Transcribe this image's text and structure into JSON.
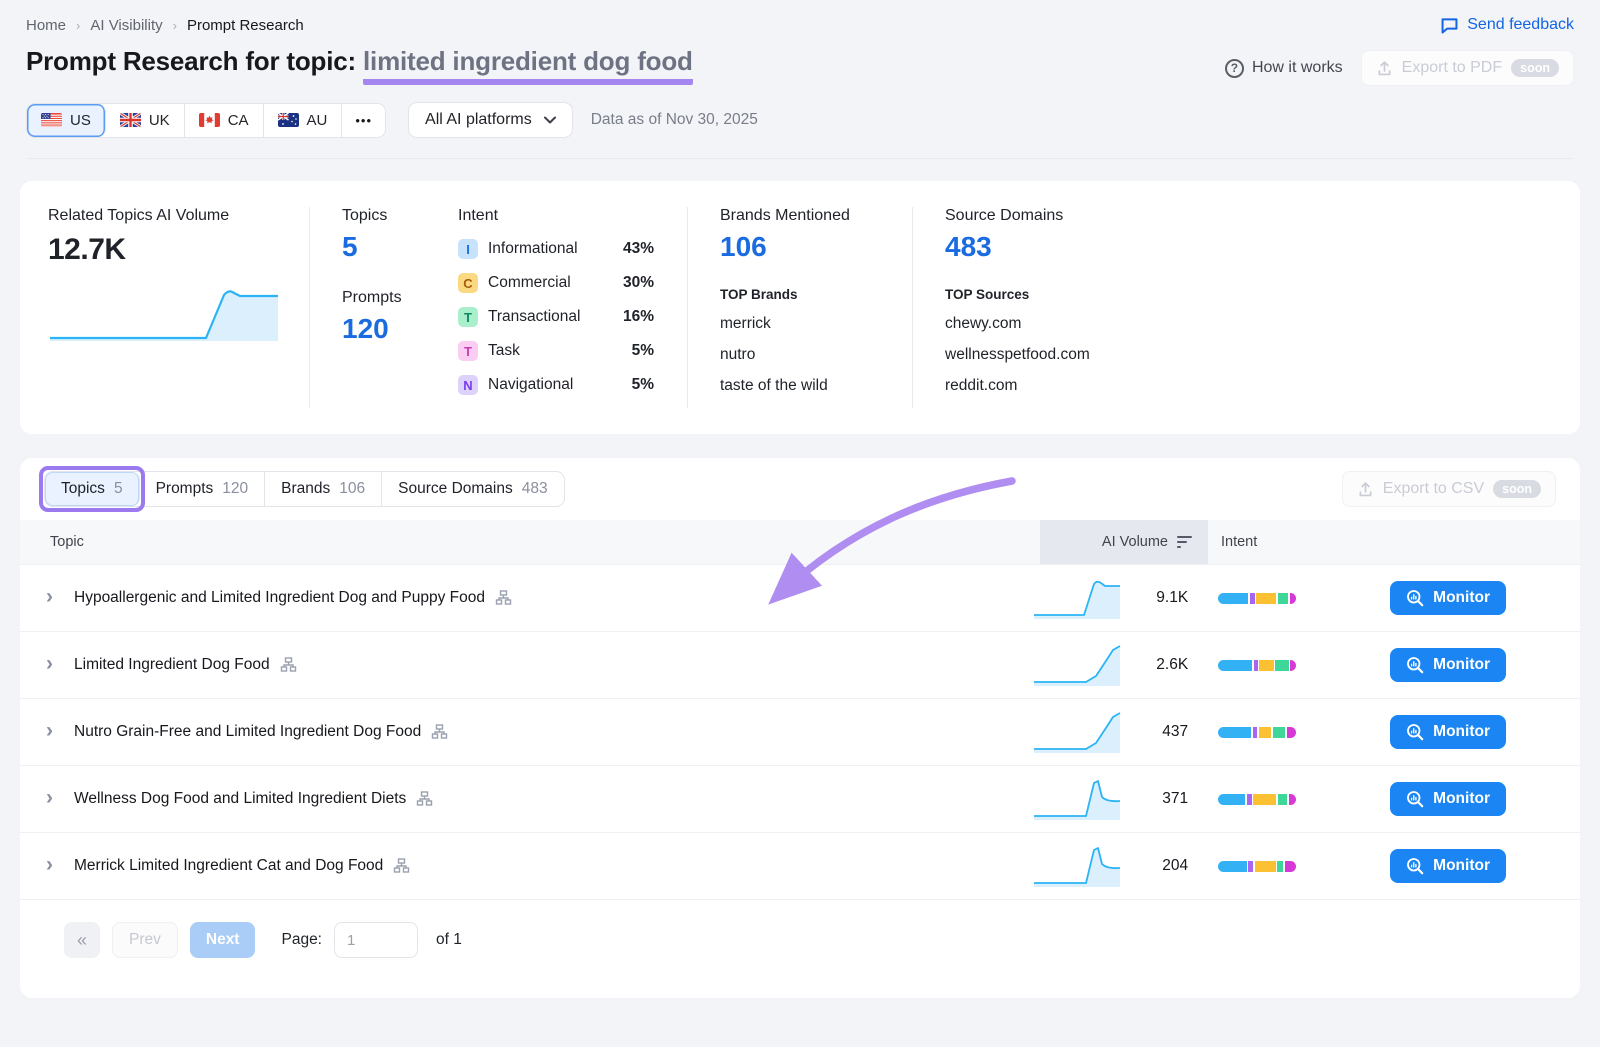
{
  "breadcrumb": {
    "items": [
      "Home",
      "AI Visibility",
      "Prompt Research"
    ]
  },
  "header": {
    "send_feedback": "Send feedback",
    "title_prefix": "Prompt Research for topic:",
    "topic": "limited ingredient dog food",
    "how_it_works": "How it works",
    "export_pdf_label": "Export to PDF",
    "soon_badge": "soon"
  },
  "filters": {
    "countries": [
      {
        "label": "US",
        "selected": true
      },
      {
        "label": "UK",
        "selected": false
      },
      {
        "label": "CA",
        "selected": false
      },
      {
        "label": "AU",
        "selected": false
      }
    ],
    "more_countries": "•••",
    "platforms_selected": "All AI platforms",
    "data_as_of": "Data as of Nov 30, 2025"
  },
  "summary": {
    "related_topics_label": "Related Topics AI Volume",
    "related_topics_value": "12.7K",
    "topics_label": "Topics",
    "topics_value": "5",
    "prompts_label": "Prompts",
    "prompts_value": "120",
    "intent_label": "Intent",
    "intent_items": [
      {
        "letter": "I",
        "name": "Informational",
        "pct": "43%",
        "badge_bg": "#c7e2fb",
        "badge_fg": "#1c6fdd"
      },
      {
        "letter": "C",
        "name": "Commercial",
        "pct": "30%",
        "badge_bg": "#fbd982",
        "badge_fg": "#a85d08"
      },
      {
        "letter": "T",
        "name": "Transactional",
        "pct": "16%",
        "badge_bg": "#a9efcb",
        "badge_fg": "#0e8a5f"
      },
      {
        "letter": "T",
        "name": "Task",
        "pct": "5%",
        "badge_bg": "#fbcdf2",
        "badge_fg": "#c53fb6"
      },
      {
        "letter": "N",
        "name": "Navigational",
        "pct": "5%",
        "badge_bg": "#ddd2fb",
        "badge_fg": "#7a3bea"
      }
    ],
    "brands_label": "Brands Mentioned",
    "brands_value": "106",
    "top_brands_label": "TOP Brands",
    "top_brands": [
      "merrick",
      "nutro",
      "taste of the wild"
    ],
    "sources_label": "Source Domains",
    "sources_value": "483",
    "top_sources_label": "TOP Sources",
    "top_sources": [
      "chewy.com",
      "wellnesspetfood.com",
      "reddit.com"
    ]
  },
  "tabs": [
    {
      "label": "Topics",
      "count": "5",
      "selected": true
    },
    {
      "label": "Prompts",
      "count": "120",
      "selected": false
    },
    {
      "label": "Brands",
      "count": "106",
      "selected": false
    },
    {
      "label": "Source Domains",
      "count": "483",
      "selected": false
    }
  ],
  "export_csv_label": "Export to CSV",
  "table": {
    "col_topic": "Topic",
    "col_ai_volume": "AI Volume",
    "col_intent": "Intent",
    "monitor_label": "Monitor",
    "intent_colors": [
      "#33b1f5",
      "#a964f0",
      "#fcc033",
      "#3fd69a",
      "#d63ad6"
    ],
    "rows": [
      {
        "topic": "Hypoallergenic and Limited Ingredient Dog and Puppy Food",
        "ai_volume": "9.1K",
        "trend": "rise-hold",
        "intent_split": [
          41,
          7,
          27,
          14,
          9
        ]
      },
      {
        "topic": "Limited Ingredient Dog Food",
        "ai_volume": "2.6K",
        "trend": "rise-end",
        "intent_split": [
          46,
          5,
          20,
          18,
          8
        ]
      },
      {
        "topic": "Nutro Grain-Free and Limited Ingredient Dog Food",
        "ai_volume": "437",
        "trend": "rise-end",
        "intent_split": [
          45,
          6,
          17,
          17,
          13
        ]
      },
      {
        "topic": "Wellness Dog Food and Limited Ingredient Diets",
        "ai_volume": "371",
        "trend": "spike-fall",
        "intent_split": [
          37,
          7,
          32,
          13,
          10
        ]
      },
      {
        "topic": "Merrick Limited Ingredient Cat and Dog Food",
        "ai_volume": "204",
        "trend": "spike-fall",
        "intent_split": [
          39,
          7,
          29,
          8,
          16
        ]
      }
    ]
  },
  "pagination": {
    "first": "«",
    "prev": "Prev",
    "next": "Next",
    "page_label": "Page:",
    "page_value": "1",
    "total": "of 1"
  },
  "colors": {
    "annotation_purple": "#a585f0",
    "monitor_blue": "#1b86f3",
    "stat_blue": "#1a6ae0",
    "link_blue": "#1365e4",
    "sparkline_blue": "#2bb4f5"
  }
}
